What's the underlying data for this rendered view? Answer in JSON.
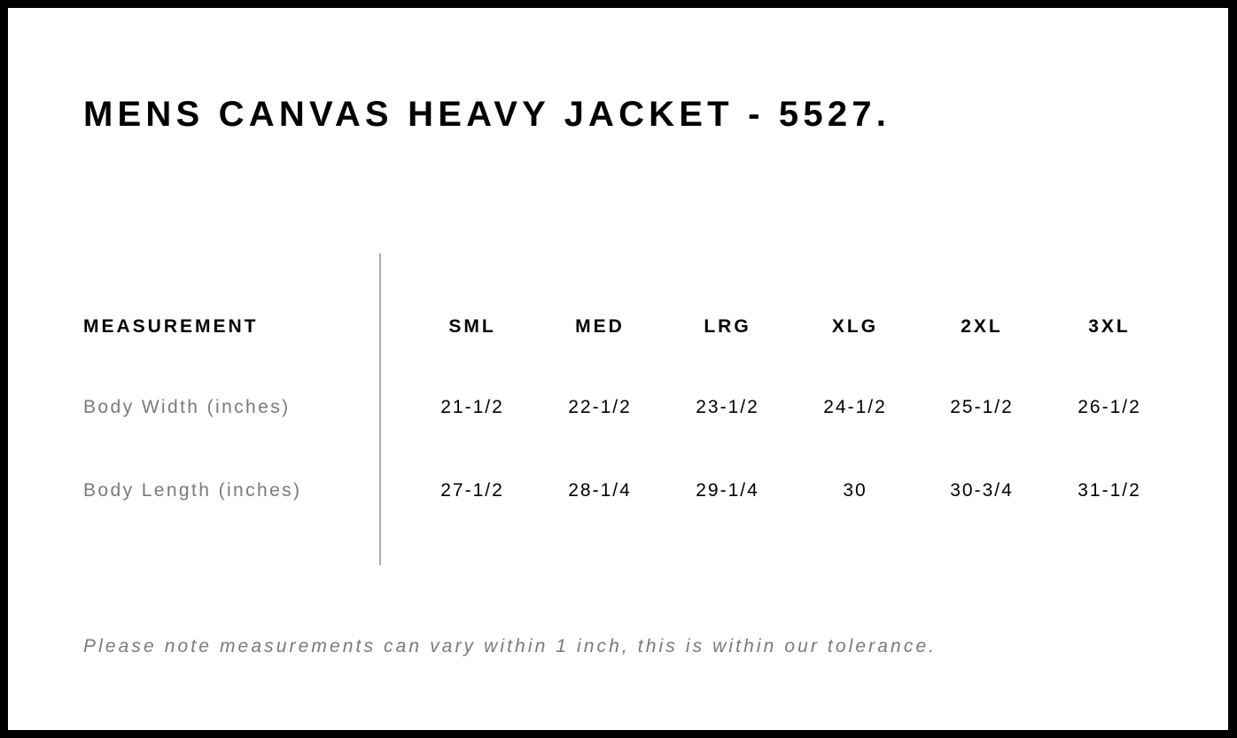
{
  "title": "MENS CANVAS HEAVY JACKET - 5527.",
  "table": {
    "header_label": "MEASUREMENT",
    "sizes": [
      "SML",
      "MED",
      "LRG",
      "XLG",
      "2XL",
      "3XL"
    ],
    "rows": [
      {
        "label": "Body Width (inches)",
        "values": [
          "21-1/2",
          "22-1/2",
          "23-1/2",
          "24-1/2",
          "25-1/2",
          "26-1/2"
        ]
      },
      {
        "label": "Body Length (inches)",
        "values": [
          "27-1/2",
          "28-1/4",
          "29-1/4",
          "30",
          "30-3/4",
          "31-1/2"
        ]
      }
    ]
  },
  "note": "Please note measurements can vary within 1 inch, this is within our tolerance."
}
